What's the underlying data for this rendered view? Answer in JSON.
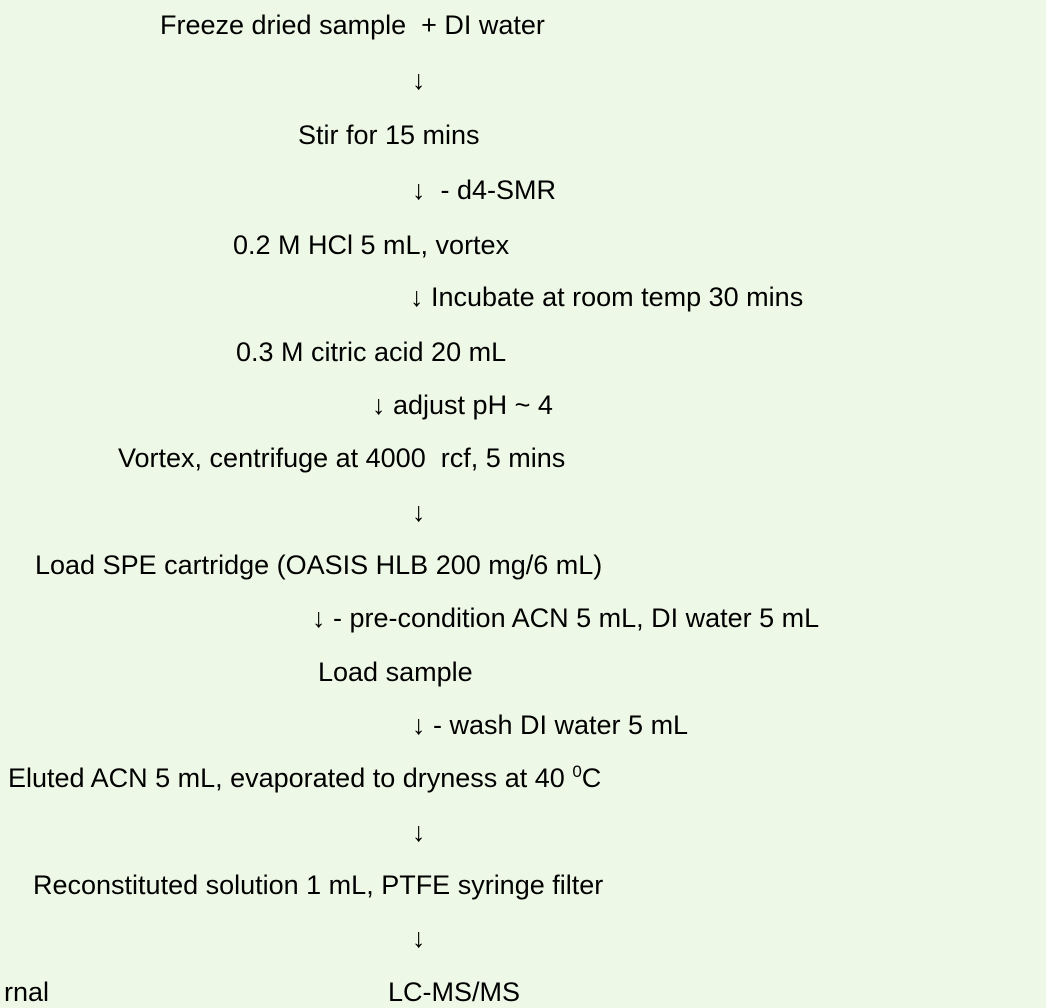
{
  "steps": [
    {
      "text": "Freeze dried sample  + DI water"
    },
    {
      "text": "↓"
    },
    {
      "text": "Stir for 15 mins"
    },
    {
      "text": "↓  - d4-SMR"
    },
    {
      "text": "0.2 M HCl 5 mL, vortex"
    },
    {
      "text": "↓ Incubate at room temp 30 mins"
    },
    {
      "text": "0.3 M citric acid 20 mL"
    },
    {
      "text": "↓ adjust pH ~ 4"
    },
    {
      "text": "Vortex, centrifuge at 4000  rcf, 5 mins"
    },
    {
      "text": "↓"
    },
    {
      "text": "Load SPE cartridge (OASIS HLB 200 mg/6 mL)"
    },
    {
      "text": "↓ - pre-condition ACN 5 mL, DI water 5 mL"
    },
    {
      "text": "Load sample"
    },
    {
      "text": "↓ - wash DI water 5 mL"
    },
    {
      "text": "Eluted ACN 5 mL, evaporated to dryness at 40 ",
      "sup": "0",
      "after": "C"
    },
    {
      "text": "↓"
    },
    {
      "text": "Reconstituted solution 1 mL, PTFE syringe filter"
    },
    {
      "text": "↓"
    },
    {
      "text": "rnal"
    },
    {
      "text": "LC-MS/MS"
    }
  ]
}
